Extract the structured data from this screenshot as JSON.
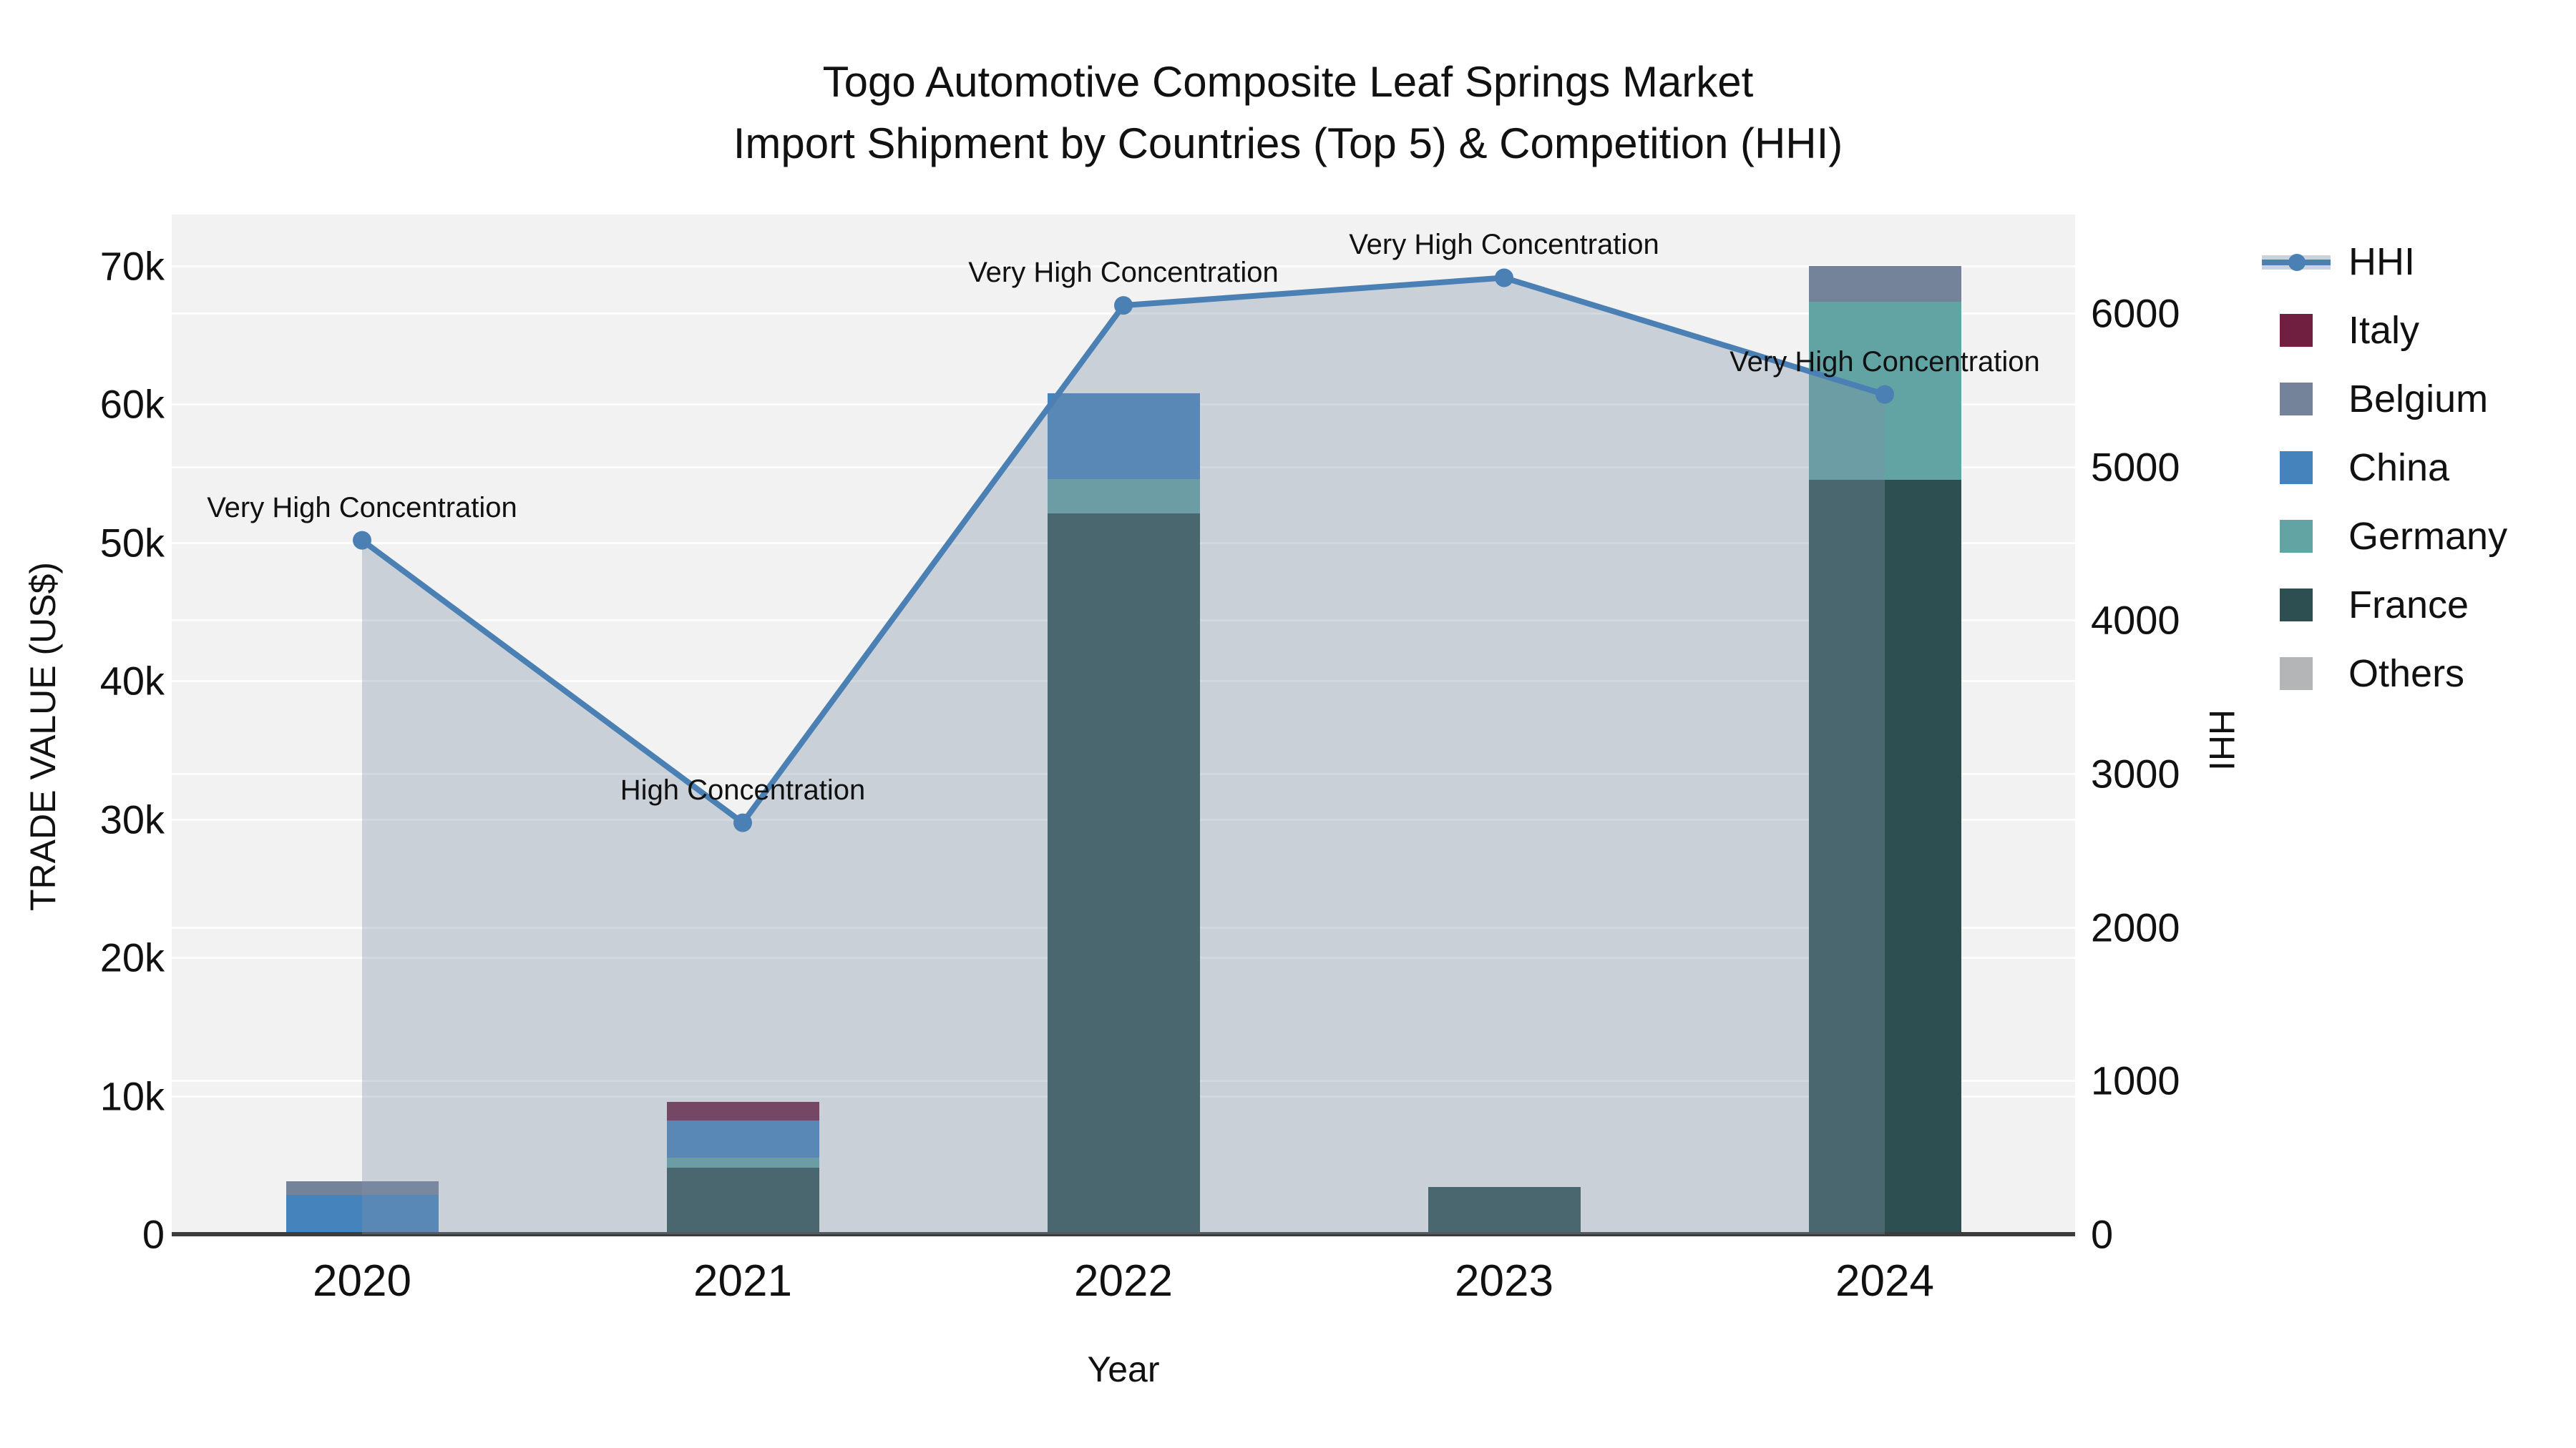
{
  "title": {
    "line1": "Togo Automotive Composite Leaf Springs Market",
    "line2": "Import Shipment by Countries (Top 5) & Competition (HHI)"
  },
  "colors": {
    "plot_bg": "#f2f2f2",
    "grid": "rgba(255,255,255,0.9)",
    "axis_line": "#3d3d3d",
    "hhi_line": "#4a80b4",
    "hhi_area_fill": "rgba(130,145,170,0.35)",
    "hhi_legend_band": "#ccd2dc",
    "france": "#2d4f51",
    "germany": "#62a4a3",
    "china": "#4583bd",
    "belgium": "#75839a",
    "italy": "#701f40",
    "others": "#b3b5b6"
  },
  "legend": [
    {
      "label": "HHI",
      "type": "line",
      "color": "#4a80b4"
    },
    {
      "label": "Italy",
      "type": "swatch",
      "color": "#701f40"
    },
    {
      "label": "Belgium",
      "type": "swatch",
      "color": "#75839a"
    },
    {
      "label": "China",
      "type": "swatch",
      "color": "#4583bd"
    },
    {
      "label": "Germany",
      "type": "swatch",
      "color": "#62a4a3"
    },
    {
      "label": "France",
      "type": "swatch",
      "color": "#2d4f51"
    },
    {
      "label": "Others",
      "type": "swatch",
      "color": "#b3b5b6"
    }
  ],
  "chart_data": {
    "type": "bar+line",
    "title": "Togo Automotive Composite Leaf Springs Market — Import Shipment by Countries (Top 5) & Competition (HHI)",
    "categories": [
      "2020",
      "2021",
      "2022",
      "2023",
      "2024"
    ],
    "stack_order_bottom_to_top": [
      "France",
      "Germany",
      "China",
      "Belgium",
      "Italy",
      "Others"
    ],
    "series": [
      {
        "name": "France",
        "color": "#2d4f51",
        "values": [
          0,
          4800,
          52100,
          3400,
          54500
        ]
      },
      {
        "name": "Germany",
        "color": "#62a4a3",
        "values": [
          150,
          730,
          2500,
          0,
          12900
        ]
      },
      {
        "name": "China",
        "color": "#4583bd",
        "values": [
          2700,
          2700,
          6200,
          0,
          0
        ]
      },
      {
        "name": "Belgium",
        "color": "#75839a",
        "values": [
          950,
          0,
          0,
          0,
          2600
        ]
      },
      {
        "name": "Italy",
        "color": "#701f40",
        "values": [
          0,
          1350,
          0,
          0,
          0
        ]
      },
      {
        "name": "Others",
        "color": "#b3b5b6",
        "values": [
          0,
          0,
          0,
          0,
          0
        ]
      }
    ],
    "line_series": {
      "name": "HHI",
      "axis": "right",
      "color": "#4a80b4",
      "values": [
        4520,
        2680,
        6050,
        6230,
        5470
      ],
      "area_fill": true
    },
    "annotations": [
      "Very High Concentration",
      "High Concentration",
      "Very High Concentration",
      "Very High Concentration",
      "Very High Concentration"
    ],
    "xlabel": "Year",
    "y_left": {
      "title": "TRADE VALUE (US$)",
      "ticks": [
        0,
        10000,
        20000,
        30000,
        40000,
        50000,
        60000,
        70000
      ],
      "tick_labels": [
        "0",
        "10k",
        "20k",
        "30k",
        "40k",
        "50k",
        "60k",
        "70k"
      ],
      "range": [
        0,
        73700
      ],
      "grid": true
    },
    "y_right": {
      "title": "HHI",
      "ticks": [
        0,
        1000,
        2000,
        3000,
        4000,
        5000,
        6000
      ],
      "tick_labels": [
        "0",
        "1000",
        "2000",
        "3000",
        "4000",
        "5000",
        "6000"
      ],
      "range": [
        0,
        6642
      ],
      "grid": true
    },
    "legend_position": "right"
  }
}
